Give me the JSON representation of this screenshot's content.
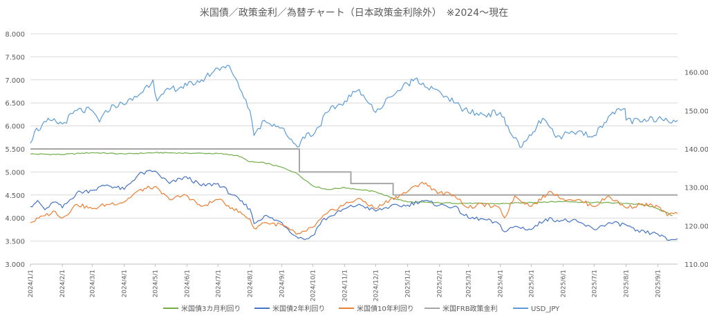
{
  "chart_data": {
    "type": "line",
    "title": "米国債／政策金利／為替チャート（日本政策金利除外）　※2024～現在",
    "xlabel": "",
    "ylabel": "",
    "y_left": {
      "ylim": [
        3.0,
        8.0
      ],
      "ticks": [
        "3.000",
        "3.500",
        "4.000",
        "4.500",
        "5.000",
        "5.500",
        "6.000",
        "6.500",
        "7.000",
        "7.500",
        "8.000"
      ]
    },
    "y_right": {
      "ylim": [
        110,
        170
      ],
      "ticks": [
        "110.00",
        "120.00",
        "130.00",
        "140.00",
        "150.00",
        "160.00"
      ]
    },
    "x_ticks": [
      "2024/1/1",
      "2024/2/1",
      "2024/3/1",
      "2024/4/1",
      "2024/5/1",
      "2024/6/1",
      "2024/7/1",
      "2024/8/1",
      "2024/9/1",
      "2024/10/1",
      "2024/11/1",
      "2024/12/1",
      "2025/1/1",
      "2025/2/1",
      "2025/3/1",
      "2025/4/1",
      "2025/5/1",
      "2025/6/1",
      "2025/7/1",
      "2025/8/1",
      "2025/9/1"
    ],
    "x_range": [
      "2024-01-01",
      "2025-09-20"
    ],
    "grid": {
      "horizontal": true,
      "vertical": false
    },
    "legend_position": "bottom",
    "series": [
      {
        "name": "米国債3カ月利回り",
        "axis": "left",
        "color": "#70ad47",
        "points": [
          [
            "2024-01-01",
            5.39
          ],
          [
            "2024-02-01",
            5.38
          ],
          [
            "2024-03-01",
            5.42
          ],
          [
            "2024-04-01",
            5.39
          ],
          [
            "2024-05-01",
            5.42
          ],
          [
            "2024-06-01",
            5.41
          ],
          [
            "2024-07-01",
            5.4
          ],
          [
            "2024-07-20",
            5.36
          ],
          [
            "2024-08-01",
            5.22
          ],
          [
            "2024-08-15",
            5.2
          ],
          [
            "2024-09-01",
            5.1
          ],
          [
            "2024-09-15",
            4.98
          ],
          [
            "2024-10-01",
            4.7
          ],
          [
            "2024-10-15",
            4.62
          ],
          [
            "2024-11-01",
            4.66
          ],
          [
            "2024-11-15",
            4.62
          ],
          [
            "2024-12-01",
            4.57
          ],
          [
            "2024-12-15",
            4.45
          ],
          [
            "2025-01-01",
            4.35
          ],
          [
            "2025-02-01",
            4.33
          ],
          [
            "2025-03-01",
            4.32
          ],
          [
            "2025-04-01",
            4.31
          ],
          [
            "2025-05-01",
            4.34
          ],
          [
            "2025-06-01",
            4.36
          ],
          [
            "2025-07-01",
            4.34
          ],
          [
            "2025-08-01",
            4.32
          ],
          [
            "2025-08-20",
            4.28
          ],
          [
            "2025-09-01",
            4.2
          ],
          [
            "2025-09-15",
            4.05
          ]
        ]
      },
      {
        "name": "米国債2年利回り",
        "axis": "left",
        "color": "#4472c4",
        "points": [
          [
            "2024-01-01",
            4.25
          ],
          [
            "2024-01-08",
            4.38
          ],
          [
            "2024-01-15",
            4.18
          ],
          [
            "2024-01-25",
            4.35
          ],
          [
            "2024-02-01",
            4.22
          ],
          [
            "2024-02-15",
            4.55
          ],
          [
            "2024-03-01",
            4.6
          ],
          [
            "2024-03-15",
            4.72
          ],
          [
            "2024-04-01",
            4.62
          ],
          [
            "2024-04-15",
            4.95
          ],
          [
            "2024-04-30",
            5.02
          ],
          [
            "2024-05-15",
            4.75
          ],
          [
            "2024-05-31",
            4.9
          ],
          [
            "2024-06-15",
            4.7
          ],
          [
            "2024-07-01",
            4.75
          ],
          [
            "2024-07-15",
            4.5
          ],
          [
            "2024-08-01",
            4.2
          ],
          [
            "2024-08-05",
            3.88
          ],
          [
            "2024-08-15",
            4.05
          ],
          [
            "2024-09-01",
            3.9
          ],
          [
            "2024-09-15",
            3.6
          ],
          [
            "2024-09-25",
            3.55
          ],
          [
            "2024-10-01",
            3.62
          ],
          [
            "2024-10-10",
            3.95
          ],
          [
            "2024-10-20",
            4.05
          ],
          [
            "2024-11-01",
            4.2
          ],
          [
            "2024-11-15",
            4.3
          ],
          [
            "2024-12-01",
            4.15
          ],
          [
            "2024-12-15",
            4.25
          ],
          [
            "2025-01-01",
            4.28
          ],
          [
            "2025-01-15",
            4.38
          ],
          [
            "2025-02-01",
            4.28
          ],
          [
            "2025-02-15",
            4.25
          ],
          [
            "2025-03-01",
            4.0
          ],
          [
            "2025-03-15",
            3.98
          ],
          [
            "2025-04-01",
            3.85
          ],
          [
            "2025-04-05",
            3.7
          ],
          [
            "2025-04-15",
            3.82
          ],
          [
            "2025-05-01",
            3.75
          ],
          [
            "2025-05-15",
            3.98
          ],
          [
            "2025-06-01",
            3.95
          ],
          [
            "2025-06-15",
            3.92
          ],
          [
            "2025-07-01",
            3.75
          ],
          [
            "2025-07-15",
            3.9
          ],
          [
            "2025-08-01",
            3.85
          ],
          [
            "2025-08-10",
            3.72
          ],
          [
            "2025-09-01",
            3.65
          ],
          [
            "2025-09-10",
            3.52
          ],
          [
            "2025-09-20",
            3.55
          ]
        ]
      },
      {
        "name": "米国債10年利回り",
        "axis": "left",
        "color": "#ed7d31",
        "points": [
          [
            "2024-01-01",
            3.9
          ],
          [
            "2024-01-15",
            4.05
          ],
          [
            "2024-01-25",
            4.15
          ],
          [
            "2024-02-01",
            4.0
          ],
          [
            "2024-02-15",
            4.3
          ],
          [
            "2024-03-01",
            4.2
          ],
          [
            "2024-03-15",
            4.3
          ],
          [
            "2024-04-01",
            4.35
          ],
          [
            "2024-04-15",
            4.6
          ],
          [
            "2024-04-30",
            4.68
          ],
          [
            "2024-05-15",
            4.4
          ],
          [
            "2024-05-31",
            4.5
          ],
          [
            "2024-06-15",
            4.25
          ],
          [
            "2024-07-01",
            4.4
          ],
          [
            "2024-07-15",
            4.22
          ],
          [
            "2024-08-01",
            3.98
          ],
          [
            "2024-08-05",
            3.78
          ],
          [
            "2024-08-15",
            3.9
          ],
          [
            "2024-09-01",
            3.85
          ],
          [
            "2024-09-15",
            3.65
          ],
          [
            "2024-09-25",
            3.72
          ],
          [
            "2024-10-01",
            3.8
          ],
          [
            "2024-10-15",
            4.1
          ],
          [
            "2024-11-01",
            4.3
          ],
          [
            "2024-11-15",
            4.43
          ],
          [
            "2024-12-01",
            4.2
          ],
          [
            "2024-12-15",
            4.4
          ],
          [
            "2025-01-01",
            4.57
          ],
          [
            "2025-01-15",
            4.78
          ],
          [
            "2025-02-01",
            4.55
          ],
          [
            "2025-02-15",
            4.5
          ],
          [
            "2025-03-01",
            4.22
          ],
          [
            "2025-03-15",
            4.3
          ],
          [
            "2025-04-01",
            4.2
          ],
          [
            "2025-04-05",
            4.0
          ],
          [
            "2025-04-15",
            4.48
          ],
          [
            "2025-05-01",
            4.25
          ],
          [
            "2025-05-20",
            4.58
          ],
          [
            "2025-06-01",
            4.42
          ],
          [
            "2025-06-15",
            4.4
          ],
          [
            "2025-07-01",
            4.25
          ],
          [
            "2025-07-15",
            4.48
          ],
          [
            "2025-08-01",
            4.22
          ],
          [
            "2025-08-15",
            4.3
          ],
          [
            "2025-09-01",
            4.25
          ],
          [
            "2025-09-10",
            4.05
          ],
          [
            "2025-09-20",
            4.1
          ]
        ]
      },
      {
        "name": "米国FRB政策金利",
        "axis": "left",
        "color": "#a5a5a5",
        "step": true,
        "points": [
          [
            "2024-01-01",
            5.5
          ],
          [
            "2024-09-18",
            5.0
          ],
          [
            "2024-11-07",
            4.75
          ],
          [
            "2024-12-18",
            4.5
          ],
          [
            "2025-09-20",
            4.5
          ]
        ]
      },
      {
        "name": "USD_JPY",
        "axis": "right",
        "color": "#5b9bd5",
        "points": [
          [
            "2024-01-01",
            141.5
          ],
          [
            "2024-01-05",
            144.5
          ],
          [
            "2024-01-20",
            147.5
          ],
          [
            "2024-02-01",
            146.5
          ],
          [
            "2024-02-15",
            150.0
          ],
          [
            "2024-03-01",
            150.0
          ],
          [
            "2024-03-08",
            147.0
          ],
          [
            "2024-03-20",
            151.5
          ],
          [
            "2024-04-01",
            151.5
          ],
          [
            "2024-04-15",
            154.0
          ],
          [
            "2024-04-29",
            158.0
          ],
          [
            "2024-05-03",
            152.5
          ],
          [
            "2024-05-15",
            155.5
          ],
          [
            "2024-06-01",
            156.5
          ],
          [
            "2024-06-15",
            158.0
          ],
          [
            "2024-07-01",
            161.0
          ],
          [
            "2024-07-10",
            161.8
          ],
          [
            "2024-07-20",
            157.5
          ],
          [
            "2024-08-01",
            150.0
          ],
          [
            "2024-08-05",
            143.5
          ],
          [
            "2024-08-15",
            147.5
          ],
          [
            "2024-09-01",
            145.5
          ],
          [
            "2024-09-16",
            140.5
          ],
          [
            "2024-09-25",
            144.0
          ],
          [
            "2024-10-01",
            143.5
          ],
          [
            "2024-10-15",
            149.5
          ],
          [
            "2024-11-01",
            152.5
          ],
          [
            "2024-11-15",
            155.5
          ],
          [
            "2024-12-01",
            149.5
          ],
          [
            "2024-12-15",
            153.5
          ],
          [
            "2025-01-01",
            157.0
          ],
          [
            "2025-01-10",
            158.5
          ],
          [
            "2025-01-20",
            156.0
          ],
          [
            "2025-02-01",
            155.0
          ],
          [
            "2025-02-15",
            152.0
          ],
          [
            "2025-03-01",
            149.5
          ],
          [
            "2025-03-15",
            149.0
          ],
          [
            "2025-04-01",
            149.5
          ],
          [
            "2025-04-10",
            144.5
          ],
          [
            "2025-04-22",
            140.5
          ],
          [
            "2025-05-01",
            143.5
          ],
          [
            "2025-05-12",
            148.0
          ],
          [
            "2025-05-25",
            143.0
          ],
          [
            "2025-06-01",
            143.5
          ],
          [
            "2025-06-15",
            144.5
          ],
          [
            "2025-07-01",
            143.5
          ],
          [
            "2025-07-15",
            148.5
          ],
          [
            "2025-07-31",
            150.5
          ],
          [
            "2025-08-01",
            147.5
          ],
          [
            "2025-08-15",
            147.0
          ],
          [
            "2025-09-01",
            148.0
          ],
          [
            "2025-09-20",
            147.5
          ]
        ]
      }
    ]
  }
}
